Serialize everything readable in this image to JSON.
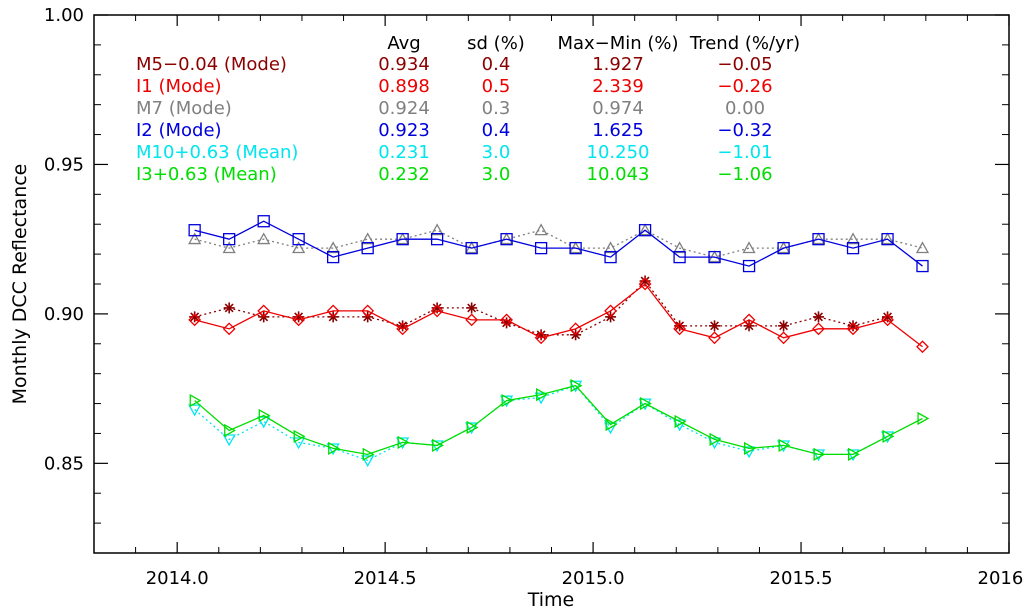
{
  "chart_data": {
    "type": "line",
    "xlabel": "Time",
    "ylabel": "Monthly DCC Reflectance",
    "xlim": [
      2013.8,
      2016.0
    ],
    "ylim": [
      0.82,
      1.0
    ],
    "xticks": [
      2014.0,
      2014.5,
      2015.0,
      2015.5,
      2016.0
    ],
    "xtick_labels": [
      "2014.0",
      "2014.5",
      "2015.0",
      "2015.5",
      "2016.0"
    ],
    "yticks": [
      0.85,
      0.9,
      0.95,
      1.0
    ],
    "ytick_labels": [
      "0.85",
      "0.90",
      "0.95",
      "1.00"
    ],
    "grid": false,
    "x": [
      2014.042,
      2014.125,
      2014.208,
      2014.292,
      2014.375,
      2014.458,
      2014.542,
      2014.625,
      2014.708,
      2014.792,
      2014.875,
      2014.958,
      2015.042,
      2015.125,
      2015.208,
      2015.292,
      2015.375,
      2015.458,
      2015.542,
      2015.625,
      2015.708,
      2015.792
    ],
    "table_headers": [
      "Avg",
      "sd (%)",
      "Max−Min (%)",
      "Trend (%/yr)"
    ],
    "series": [
      {
        "name": "M5−0.04 (Mode)",
        "color": "#8b0000",
        "marker": "asterisk",
        "dash": "dotted",
        "stats": [
          "0.934",
          "0.4",
          "1.927",
          "−0.05"
        ],
        "values": [
          0.899,
          0.902,
          0.899,
          0.899,
          0.899,
          0.899,
          0.896,
          0.902,
          0.902,
          0.897,
          0.893,
          0.893,
          0.899,
          0.911,
          0.896,
          0.896,
          0.896,
          0.896,
          0.899,
          0.896,
          0.899,
          null
        ]
      },
      {
        "name": "I1 (Mode)",
        "color": "#ee0000",
        "marker": "diamond",
        "dash": "solid",
        "stats": [
          "0.898",
          "0.5",
          "2.339",
          "−0.26"
        ],
        "values": [
          0.898,
          0.895,
          0.901,
          0.898,
          0.901,
          0.901,
          0.895,
          0.901,
          0.898,
          0.898,
          0.892,
          0.895,
          0.901,
          0.91,
          0.895,
          0.892,
          0.898,
          0.892,
          0.895,
          0.895,
          0.898,
          0.889
        ]
      },
      {
        "name": "M7 (Mode)",
        "color": "#808080",
        "marker": "triangle-up",
        "dash": "dotted",
        "stats": [
          "0.924",
          "0.3",
          "0.974",
          "0.00"
        ],
        "values": [
          0.925,
          0.922,
          0.925,
          0.922,
          0.922,
          0.925,
          0.925,
          0.928,
          0.922,
          0.925,
          0.928,
          0.922,
          0.922,
          0.928,
          0.922,
          0.919,
          0.922,
          0.922,
          0.925,
          0.925,
          0.925,
          0.922
        ]
      },
      {
        "name": "I2 (Mode)",
        "color": "#0000dd",
        "marker": "square",
        "dash": "solid",
        "stats": [
          "0.923",
          "0.4",
          "1.625",
          "−0.32"
        ],
        "values": [
          0.928,
          0.925,
          0.931,
          0.925,
          0.919,
          0.922,
          0.925,
          0.925,
          0.922,
          0.925,
          0.922,
          0.922,
          0.919,
          0.928,
          0.919,
          0.919,
          0.916,
          0.922,
          0.925,
          0.922,
          0.925,
          0.916
        ]
      },
      {
        "name": "M10+0.63 (Mean)",
        "color": "#00e5ee",
        "marker": "triangle-down",
        "dash": "dotted",
        "stats": [
          "0.231",
          "3.0",
          "10.250",
          "−1.01"
        ],
        "values": [
          0.868,
          0.858,
          0.864,
          0.857,
          0.855,
          0.851,
          0.857,
          0.856,
          0.862,
          0.871,
          0.872,
          0.876,
          0.862,
          0.87,
          0.863,
          0.857,
          0.854,
          0.856,
          0.853,
          0.853,
          0.859,
          null
        ]
      },
      {
        "name": "I3+0.63 (Mean)",
        "color": "#00dd00",
        "marker": "triangle-right",
        "dash": "solid",
        "stats": [
          "0.232",
          "3.0",
          "10.043",
          "−1.06"
        ],
        "values": [
          0.871,
          0.861,
          0.866,
          0.859,
          0.855,
          0.853,
          0.857,
          0.856,
          0.862,
          0.871,
          0.873,
          0.876,
          0.863,
          0.87,
          0.864,
          0.858,
          0.855,
          0.856,
          0.853,
          0.853,
          0.859,
          0.865
        ]
      }
    ]
  }
}
